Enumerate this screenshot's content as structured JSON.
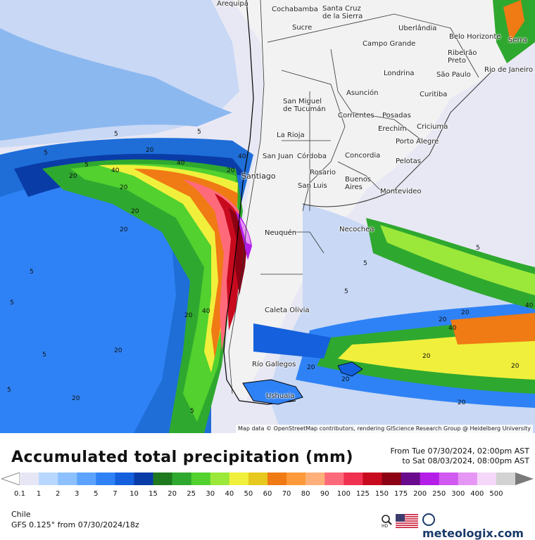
{
  "title": "Accumulated total precipitation (mm)",
  "time_range": {
    "from_label": "From Tue 07/30/2024, 02:00pm AST",
    "to_label": "to Sat 08/03/2024, 08:00pm AST"
  },
  "region": "Chile",
  "model_label": "GFS 0.125° from 07/30/2024/18z",
  "attribution": "Map data © OpenStreetMap contributors, rendering GIScience Research Group @ Heidelberg University",
  "brand": "meteologix.com",
  "legend": {
    "ticks": [
      "0.1",
      "1",
      "2",
      "3",
      "5",
      "7",
      "10",
      "15",
      "20",
      "25",
      "30",
      "40",
      "50",
      "60",
      "70",
      "80",
      "90",
      "100",
      "125",
      "150",
      "175",
      "200",
      "250",
      "300",
      "400",
      "500"
    ],
    "colors": [
      "#e6e6f5",
      "#b7d7ff",
      "#8cc0ff",
      "#5ba3ff",
      "#2f82f5",
      "#1560dc",
      "#0a3ca8",
      "#1f7a1f",
      "#2fa82f",
      "#52d12f",
      "#9be83a",
      "#f0f03c",
      "#e6c81e",
      "#f07a14",
      "#ff9a3a",
      "#ffb07a",
      "#ff6a7a",
      "#f03250",
      "#c80a1e",
      "#8c0014",
      "#6a0a8c",
      "#b41ee6",
      "#d25af0",
      "#e696f5",
      "#f5d7fa",
      "#d2d2d2"
    ]
  },
  "cities": [
    {
      "name": "Arequipa"
    },
    {
      "name": "Cochabamba"
    },
    {
      "name": "Santa Cruz de la Sierra"
    },
    {
      "name": "Sucre"
    },
    {
      "name": "Uberlândia"
    },
    {
      "name": "Belo Horizonte"
    },
    {
      "name": "Serra"
    },
    {
      "name": "Campo Grande"
    },
    {
      "name": "Ribeirão Preto"
    },
    {
      "name": "Rio de Janeiro"
    },
    {
      "name": "Londrina"
    },
    {
      "name": "São Paulo"
    },
    {
      "name": "Asunción"
    },
    {
      "name": "Curitiba"
    },
    {
      "name": "San Miguel de Tucumán"
    },
    {
      "name": "Corrientes"
    },
    {
      "name": "Posadas"
    },
    {
      "name": "Erechim"
    },
    {
      "name": "Criciuma"
    },
    {
      "name": "La Rioja"
    },
    {
      "name": "Porto Alegre"
    },
    {
      "name": "San Juan"
    },
    {
      "name": "Córdoba"
    },
    {
      "name": "Concordia"
    },
    {
      "name": "Pelotas"
    },
    {
      "name": "Santiago"
    },
    {
      "name": "Rosario"
    },
    {
      "name": "San Luis"
    },
    {
      "name": "Buenos Aires"
    },
    {
      "name": "Montevideo"
    },
    {
      "name": "Necochea"
    },
    {
      "name": "Neuquén"
    },
    {
      "name": "Caleta Olivia"
    },
    {
      "name": "Río Gallegos"
    },
    {
      "name": "Ushuaia"
    }
  ],
  "contour_labels": [
    "5",
    "5",
    "5",
    "5",
    "20",
    "40",
    "20",
    "20",
    "40",
    "20",
    "20",
    "40",
    "20",
    "5",
    "5",
    "20",
    "5",
    "40",
    "20",
    "20",
    "5",
    "5",
    "20",
    "20",
    "5",
    "5",
    "40",
    "20",
    "20",
    "20",
    "40",
    "5",
    "20",
    "20"
  ]
}
